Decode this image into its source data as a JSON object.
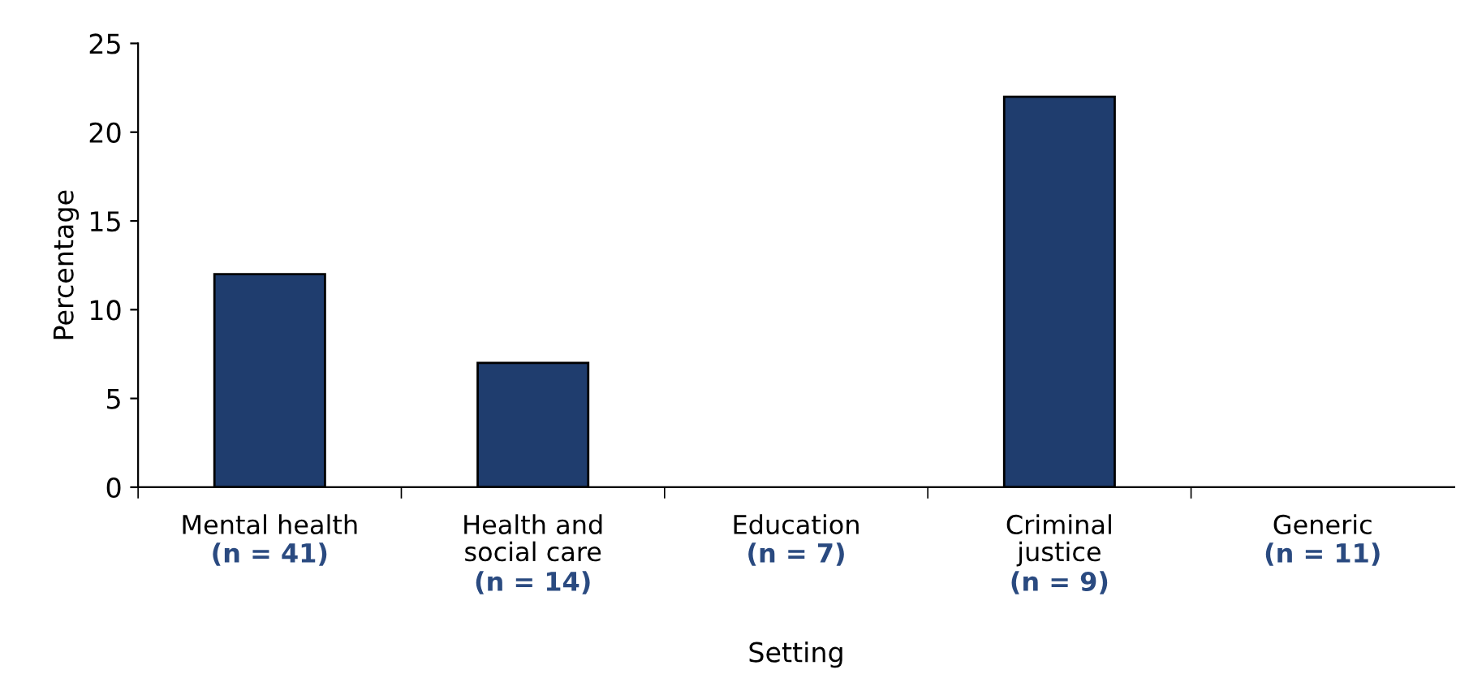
{
  "chart_data": {
    "type": "bar",
    "xlabel": "Setting",
    "ylabel": "Percentage",
    "categories": [
      "Mental health\n(n = 41)",
      "Health and\nsocial care\n(n = 14)",
      "Education\n(n = 7)",
      "Criminal\njustice\n(n = 9)",
      "Generic\n(n = 11)"
    ],
    "values": [
      12,
      7,
      0,
      22,
      0
    ],
    "color": "#1f3d6e",
    "ylim": [
      0,
      25
    ],
    "yticks": [
      0,
      5,
      10,
      15,
      20,
      25
    ],
    "grid": false,
    "legend": false
  }
}
